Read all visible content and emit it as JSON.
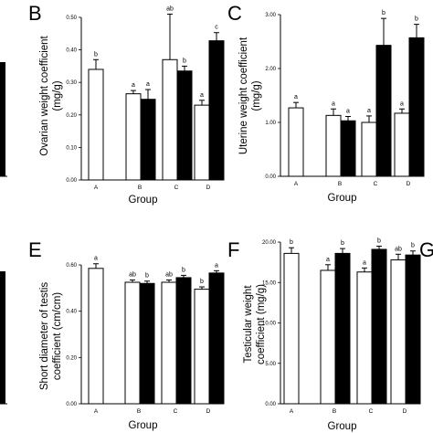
{
  "chart_data": [
    {
      "panel": "B",
      "type": "bar",
      "xlabel": "Group",
      "ylabel_lines": [
        "Ovarian weight coefficient",
        "(mg/g)"
      ],
      "categories": [
        "A",
        "B",
        "C",
        "D"
      ],
      "ylim": [
        0,
        0.5
      ],
      "ticks": [
        0,
        0.1,
        0.2,
        0.3,
        0.4,
        0.5
      ],
      "tick_labels": [
        "0.00",
        "0.10",
        "0.20",
        "0.30",
        "0.40",
        "0.50"
      ],
      "series": [
        {
          "values": [
            0.34,
            0.265,
            0.37,
            0.23
          ],
          "errors": [
            0.03,
            0.01,
            0.14,
            0.015
          ],
          "labels": [
            "b",
            "a",
            "ab",
            "a"
          ],
          "color": "#ffffff"
        },
        {
          "values": [
            null,
            0.248,
            0.335,
            0.428
          ],
          "errors": [
            null,
            0.03,
            0.015,
            0.025
          ],
          "labels": [
            null,
            "a",
            "b",
            "c"
          ],
          "color": "#000000"
        }
      ]
    },
    {
      "panel": "C",
      "type": "bar",
      "xlabel": "Group",
      "ylabel_lines": [
        "Uterine weight coefficient",
        "(mg/g)"
      ],
      "categories": [
        "A",
        "B",
        "C",
        "D"
      ],
      "ylim": [
        0,
        3
      ],
      "ticks": [
        0,
        1,
        2,
        3
      ],
      "tick_labels": [
        "0.00",
        "1.00",
        "2.00",
        "3.00"
      ],
      "series": [
        {
          "values": [
            1.27,
            1.13,
            1.0,
            1.17
          ],
          "errors": [
            0.1,
            0.12,
            0.12,
            0.08
          ],
          "labels": [
            "a",
            "a",
            "a",
            "a"
          ],
          "color": "#ffffff"
        },
        {
          "values": [
            null,
            1.03,
            2.43,
            2.57
          ],
          "errors": [
            null,
            0.08,
            0.5,
            0.25
          ],
          "labels": [
            null,
            "a",
            "b",
            "b"
          ],
          "color": "#000000"
        }
      ]
    },
    {
      "panel": "E",
      "type": "bar",
      "xlabel": "Group",
      "ylabel_lines": [
        "Short diameter of testis",
        "coefficient (cm/cm)"
      ],
      "categories": [
        "A",
        "B",
        "C",
        "D"
      ],
      "ylim": [
        0,
        0.6
      ],
      "ticks": [
        0,
        0.2,
        0.4,
        0.6
      ],
      "tick_labels": [
        "0.00",
        "0.20",
        "0.40",
        "0.60"
      ],
      "series": [
        {
          "values": [
            0.585,
            0.525,
            0.525,
            0.495
          ],
          "errors": [
            0.02,
            0.01,
            0.01,
            0.01
          ],
          "labels": [
            "a",
            "ab",
            "ab",
            "b"
          ],
          "color": "#ffffff"
        },
        {
          "values": [
            null,
            0.52,
            0.545,
            0.565
          ],
          "errors": [
            null,
            0.01,
            0.01,
            0.01
          ],
          "labels": [
            null,
            "b",
            "b",
            "a"
          ],
          "color": "#000000"
        }
      ]
    },
    {
      "panel": "F",
      "type": "bar",
      "xlabel": "Group",
      "ylabel_lines": [
        "Testicular weight",
        "coefficient (mg/g)"
      ],
      "categories": [
        "A",
        "B",
        "C",
        "D"
      ],
      "ylim": [
        0,
        20
      ],
      "ticks": [
        0,
        5,
        10,
        15,
        20
      ],
      "tick_labels": [
        "0.00",
        "5.00",
        "10.00",
        "15.00",
        "20.00"
      ],
      "series": [
        {
          "values": [
            18.6,
            16.5,
            16.3,
            17.8
          ],
          "errors": [
            0.7,
            0.7,
            0.5,
            0.7
          ],
          "labels": [
            "b",
            "a",
            "a",
            "ab"
          ],
          "color": "#ffffff"
        },
        {
          "values": [
            null,
            18.6,
            19.1,
            18.4
          ],
          "errors": [
            null,
            0.6,
            0.4,
            0.5
          ],
          "labels": [
            null,
            "b",
            "b",
            "b"
          ],
          "color": "#000000"
        }
      ]
    }
  ],
  "panel_letters": [
    "B",
    "C",
    "E",
    "F",
    "G"
  ]
}
